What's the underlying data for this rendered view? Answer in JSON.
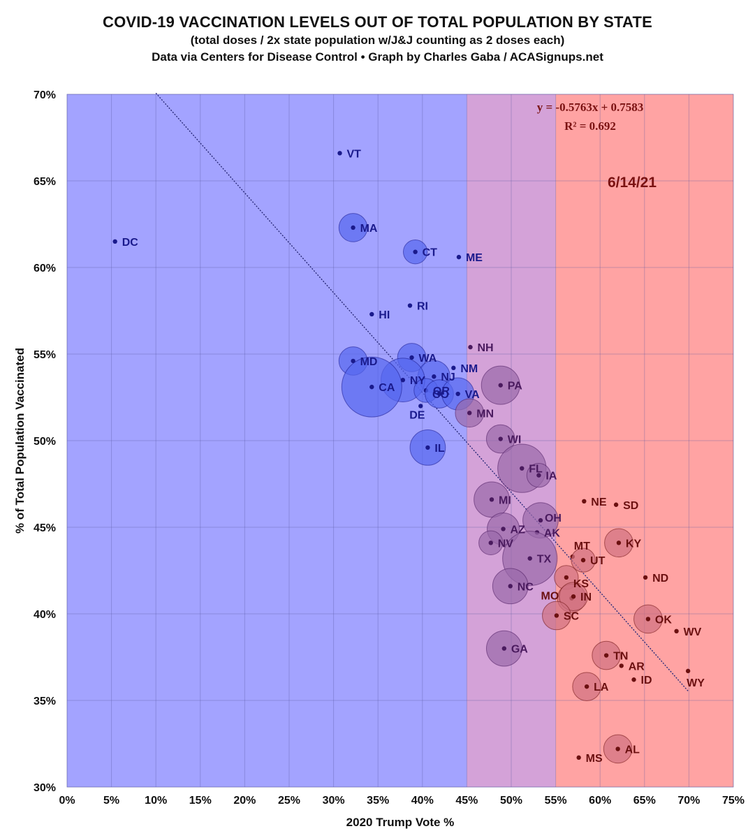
{
  "header": {
    "title": "COVID-19 VACCINATION LEVELS OUT OF TOTAL POPULATION BY STATE",
    "subtitle1": "(total doses / 2x state population w/J&J counting as 2 doses each)",
    "subtitle2": "Data via Centers for Disease Control • Graph by Charles Gaba / ACASignups.net"
  },
  "chart_data": {
    "type": "scatter",
    "xlabel": "2020 Trump Vote %",
    "ylabel": "% of Total Population Vaccinated",
    "xlim": [
      0,
      0.75
    ],
    "ylim": [
      0.3,
      0.7
    ],
    "x_ticks": [
      "0%",
      "5%",
      "10%",
      "15%",
      "20%",
      "25%",
      "30%",
      "35%",
      "40%",
      "45%",
      "50%",
      "55%",
      "60%",
      "65%",
      "70%",
      "75%"
    ],
    "y_ticks": [
      "30%",
      "35%",
      "40%",
      "45%",
      "50%",
      "55%",
      "60%",
      "65%",
      "70%"
    ],
    "grid": true,
    "bands": [
      {
        "from": 0.0,
        "to": 0.45,
        "color": "#a3a3ff"
      },
      {
        "from": 0.45,
        "to": 0.55,
        "color": "#d4a2d8"
      },
      {
        "from": 0.55,
        "to": 0.75,
        "color": "#ffa3a3"
      }
    ],
    "trendline": {
      "slope": -0.5763,
      "intercept": 0.7583,
      "x_range": [
        0.1,
        0.7
      ]
    },
    "equation": "y = -0.5763x + 0.7583",
    "r_squared": "R² = 0.692",
    "date_annotation": "6/14/21",
    "colors": {
      "blue_state": "#1a1a8c",
      "purple_state": "#4a1a5e",
      "red_state": "#6b1010",
      "blue_bubble": "#5566ee",
      "purple_bubble": "#9a6aaa",
      "red_bubble": "#d07080",
      "trendline": "#2a2a7a"
    },
    "points": [
      {
        "state": "VT",
        "x": 0.307,
        "y": 0.666,
        "size": 1
      },
      {
        "state": "MA",
        "x": 0.322,
        "y": 0.623,
        "size": 3
      },
      {
        "state": "DC",
        "x": 0.054,
        "y": 0.615,
        "size": 1
      },
      {
        "state": "CT",
        "x": 0.392,
        "y": 0.609,
        "size": 2
      },
      {
        "state": "ME",
        "x": 0.441,
        "y": 0.606,
        "size": 1
      },
      {
        "state": "RI",
        "x": 0.386,
        "y": 0.578,
        "size": 1
      },
      {
        "state": "HI",
        "x": 0.343,
        "y": 0.573,
        "size": 1
      },
      {
        "state": "NH",
        "x": 0.454,
        "y": 0.554,
        "size": 1
      },
      {
        "state": "WA",
        "x": 0.388,
        "y": 0.548,
        "size": 3
      },
      {
        "state": "MD",
        "x": 0.322,
        "y": 0.546,
        "size": 3
      },
      {
        "state": "NM",
        "x": 0.435,
        "y": 0.542,
        "size": 1
      },
      {
        "state": "NJ",
        "x": 0.413,
        "y": 0.537,
        "size": 4
      },
      {
        "state": "NY",
        "x": 0.378,
        "y": 0.535,
        "size": 8
      },
      {
        "state": "PA",
        "x": 0.488,
        "y": 0.532,
        "size": 6
      },
      {
        "state": "CA",
        "x": 0.343,
        "y": 0.531,
        "size": 16
      },
      {
        "state": "OR",
        "x": 0.404,
        "y": 0.529,
        "size": 2
      },
      {
        "state": "CO",
        "x": 0.419,
        "y": 0.527,
        "size": 3
      },
      {
        "state": "VA",
        "x": 0.44,
        "y": 0.527,
        "size": 4
      },
      {
        "state": "DE",
        "x": 0.398,
        "y": 0.52,
        "size": 1
      },
      {
        "state": "MN",
        "x": 0.453,
        "y": 0.516,
        "size": 3
      },
      {
        "state": "WI",
        "x": 0.488,
        "y": 0.501,
        "size": 3
      },
      {
        "state": "IL",
        "x": 0.406,
        "y": 0.496,
        "size": 5
      },
      {
        "state": "FL",
        "x": 0.512,
        "y": 0.484,
        "size": 10
      },
      {
        "state": "IA",
        "x": 0.531,
        "y": 0.48,
        "size": 2
      },
      {
        "state": "NE",
        "x": 0.582,
        "y": 0.465,
        "size": 1
      },
      {
        "state": "MI",
        "x": 0.478,
        "y": 0.466,
        "size": 5
      },
      {
        "state": "SD",
        "x": 0.618,
        "y": 0.463,
        "size": 1
      },
      {
        "state": "OH",
        "x": 0.533,
        "y": 0.454,
        "size": 5
      },
      {
        "state": "AZ",
        "x": 0.491,
        "y": 0.449,
        "size": 4
      },
      {
        "state": "AK",
        "x": 0.529,
        "y": 0.447,
        "size": 1
      },
      {
        "state": "KY",
        "x": 0.621,
        "y": 0.441,
        "size": 3
      },
      {
        "state": "NV",
        "x": 0.477,
        "y": 0.441,
        "size": 2
      },
      {
        "state": "MT",
        "x": 0.569,
        "y": 0.433,
        "size": 1
      },
      {
        "state": "TX",
        "x": 0.521,
        "y": 0.432,
        "size": 13
      },
      {
        "state": "UT",
        "x": 0.581,
        "y": 0.431,
        "size": 2
      },
      {
        "state": "KS",
        "x": 0.562,
        "y": 0.421,
        "size": 2
      },
      {
        "state": "ND",
        "x": 0.651,
        "y": 0.421,
        "size": 1
      },
      {
        "state": "NC",
        "x": 0.499,
        "y": 0.416,
        "size": 5
      },
      {
        "state": "MO",
        "x": 0.568,
        "y": 0.409,
        "size": 3
      },
      {
        "state": "IN",
        "x": 0.57,
        "y": 0.41,
        "size": 3
      },
      {
        "state": "SC",
        "x": 0.551,
        "y": 0.399,
        "size": 3
      },
      {
        "state": "OK",
        "x": 0.654,
        "y": 0.397,
        "size": 3
      },
      {
        "state": "WV",
        "x": 0.686,
        "y": 0.39,
        "size": 1
      },
      {
        "state": "GA",
        "x": 0.492,
        "y": 0.38,
        "size": 5
      },
      {
        "state": "TN",
        "x": 0.607,
        "y": 0.376,
        "size": 3
      },
      {
        "state": "AR",
        "x": 0.624,
        "y": 0.37,
        "size": 1
      },
      {
        "state": "WY",
        "x": 0.699,
        "y": 0.367,
        "size": 1
      },
      {
        "state": "ID",
        "x": 0.638,
        "y": 0.362,
        "size": 1
      },
      {
        "state": "LA",
        "x": 0.585,
        "y": 0.358,
        "size": 3
      },
      {
        "state": "AL",
        "x": 0.62,
        "y": 0.322,
        "size": 3
      },
      {
        "state": "MS",
        "x": 0.576,
        "y": 0.317,
        "size": 1
      }
    ]
  }
}
